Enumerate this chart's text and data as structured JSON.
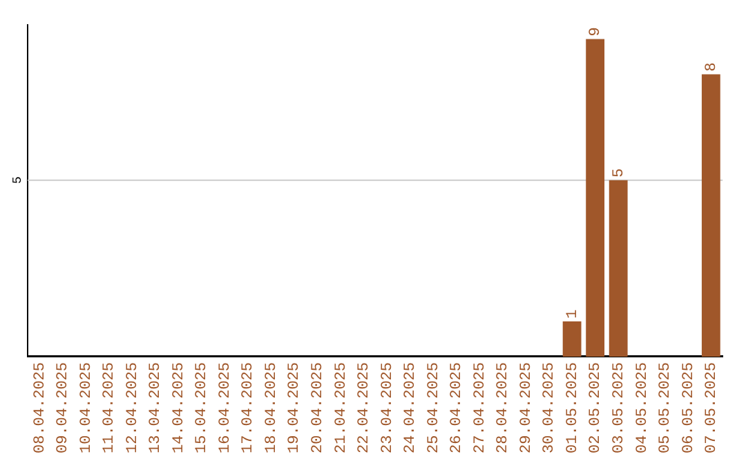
{
  "chart_data": {
    "type": "bar",
    "categories": [
      "08.04.2025",
      "09.04.2025",
      "10.04.2025",
      "11.04.2025",
      "12.04.2025",
      "13.04.2025",
      "14.04.2025",
      "15.04.2025",
      "16.04.2025",
      "17.04.2025",
      "18.04.2025",
      "19.04.2025",
      "20.04.2025",
      "21.04.2025",
      "22.04.2025",
      "23.04.2025",
      "24.04.2025",
      "25.04.2025",
      "26.04.2025",
      "27.04.2025",
      "28.04.2025",
      "29.04.2025",
      "30.04.2025",
      "01.05.2025",
      "02.05.2025",
      "03.05.2025",
      "04.05.2025",
      "05.05.2025",
      "06.05.2025",
      "07.05.2025"
    ],
    "values": [
      null,
      null,
      null,
      null,
      null,
      null,
      null,
      null,
      null,
      null,
      null,
      null,
      null,
      null,
      null,
      null,
      null,
      null,
      null,
      null,
      null,
      null,
      null,
      1,
      9,
      5,
      null,
      null,
      null,
      8
    ],
    "data_labels": true,
    "color": "#a0572a",
    "ylim": [
      0,
      9.4
    ],
    "ref_lines": [
      {
        "axis": "y",
        "value": 5,
        "label": "5",
        "color": "#cccccc"
      }
    ],
    "legend": false
  }
}
